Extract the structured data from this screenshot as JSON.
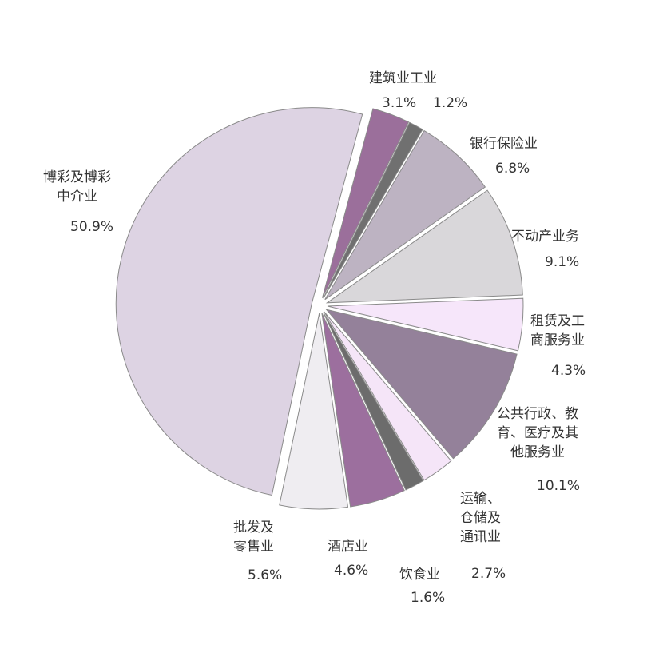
{
  "chart_data": {
    "type": "pie",
    "start_angle_deg": 15,
    "direction": "clockwise",
    "exploded": true,
    "slices": [
      {
        "label": "建筑业",
        "value": 3.1,
        "value_label": "3.1%",
        "color": "#9b6f9b"
      },
      {
        "label": "工业",
        "value": 1.2,
        "value_label": "1.2%",
        "color": "#707070"
      },
      {
        "label": "银行保险业",
        "value": 6.8,
        "value_label": "6.8%",
        "color": "#bdb3c2"
      },
      {
        "label": "不动产业务",
        "value": 9.1,
        "value_label": "9.1%",
        "color": "#d9d7da"
      },
      {
        "label": "租赁及工\n商服务业",
        "value": 4.3,
        "value_label": "4.3%",
        "color": "#f6e6fa"
      },
      {
        "label": "公共行政、教\n育、医疗及其\n他服务业",
        "value": 10.1,
        "value_label": "10.1%",
        "color": "#94819a"
      },
      {
        "label": "运输、\n仓储及\n通讯业",
        "value": 2.7,
        "value_label": "2.7%",
        "color": "#f5e5f8"
      },
      {
        "label": "饮食业",
        "value": 1.6,
        "value_label": "1.6%",
        "color": "#6c6c6c"
      },
      {
        "label": "酒店业",
        "value": 4.6,
        "value_label": "4.6%",
        "color": "#9c6f9e"
      },
      {
        "label": "批发及\n零售业",
        "value": 5.6,
        "value_label": "5.6%",
        "color": "#efedf1"
      },
      {
        "label": "博彩及博彩\n中介业",
        "value": 50.9,
        "value_label": "50.9%",
        "color": "#ddd3e3"
      }
    ]
  }
}
